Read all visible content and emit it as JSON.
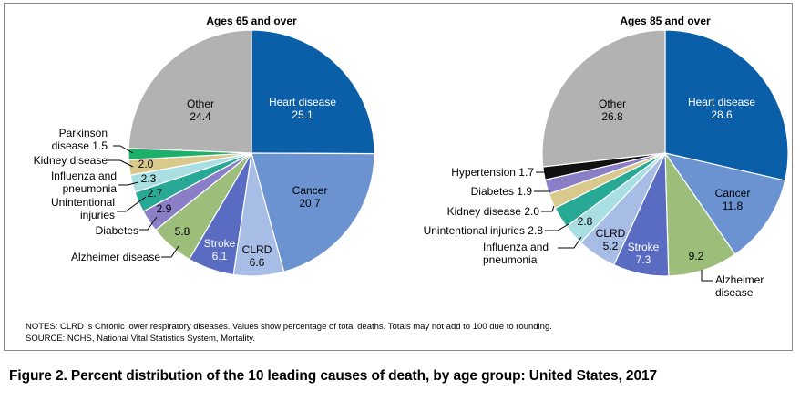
{
  "figure_caption": "Figure 2. Percent distribution of the 10 leading causes of death, by age group: United States, 2017",
  "notes": "NOTES: CLRD is Chronic lower respiratory diseases. Values show percentage of total deaths. Totals may not add to 100 due to rounding.",
  "source": "SOURCE: NCHS, National Vital Statistics System, Mortality.",
  "chart_data": [
    {
      "type": "pie",
      "title": "Ages 65 and over",
      "slices": [
        {
          "label": "Heart disease",
          "value": 25.1,
          "color": "#0b5fa9"
        },
        {
          "label": "Cancer",
          "value": 20.7,
          "color": "#6b93d2"
        },
        {
          "label": "CLRD",
          "value": 6.6,
          "color": "#a7bde6"
        },
        {
          "label": "Stroke",
          "value": 6.1,
          "color": "#5a6cc2"
        },
        {
          "label": "Alzheimer disease",
          "value": 5.8,
          "color": "#9dbd7a"
        },
        {
          "label": "Diabetes",
          "value": 2.9,
          "color": "#8a7fc6"
        },
        {
          "label": "Unintentional injuries",
          "value": 2.7,
          "color": "#27a996"
        },
        {
          "label": "Influenza and pneumonia",
          "value": 2.3,
          "color": "#a9dfe3"
        },
        {
          "label": "Kidney disease",
          "value": 2.0,
          "color": "#d9c98d"
        },
        {
          "label": "Parkinson disease",
          "value": 1.5,
          "color": "#1db06a"
        },
        {
          "label": "Other",
          "value": 24.4,
          "color": "#b2b2b2"
        }
      ]
    },
    {
      "type": "pie",
      "title": "Ages 85 and over",
      "slices": [
        {
          "label": "Heart disease",
          "value": 28.6,
          "color": "#0b5fa9"
        },
        {
          "label": "Cancer",
          "value": 11.8,
          "color": "#6b93d2"
        },
        {
          "label": "Alzheimer disease",
          "value": 9.2,
          "color": "#9dbd7a"
        },
        {
          "label": "Stroke",
          "value": 7.3,
          "color": "#5a6cc2"
        },
        {
          "label": "CLRD",
          "value": 5.2,
          "color": "#a7bde6"
        },
        {
          "label": "Influenza and pneumonia",
          "value": 2.8,
          "color": "#a9dfe3"
        },
        {
          "label": "Unintentional injuries",
          "value": 2.8,
          "color": "#27a996"
        },
        {
          "label": "Kidney disease",
          "value": 2.0,
          "color": "#d9c98d"
        },
        {
          "label": "Diabetes",
          "value": 1.9,
          "color": "#8a7fc6"
        },
        {
          "label": "Hypertension",
          "value": 1.7,
          "color": "#111111"
        },
        {
          "label": "Other",
          "value": 26.8,
          "color": "#b2b2b2"
        }
      ]
    }
  ]
}
